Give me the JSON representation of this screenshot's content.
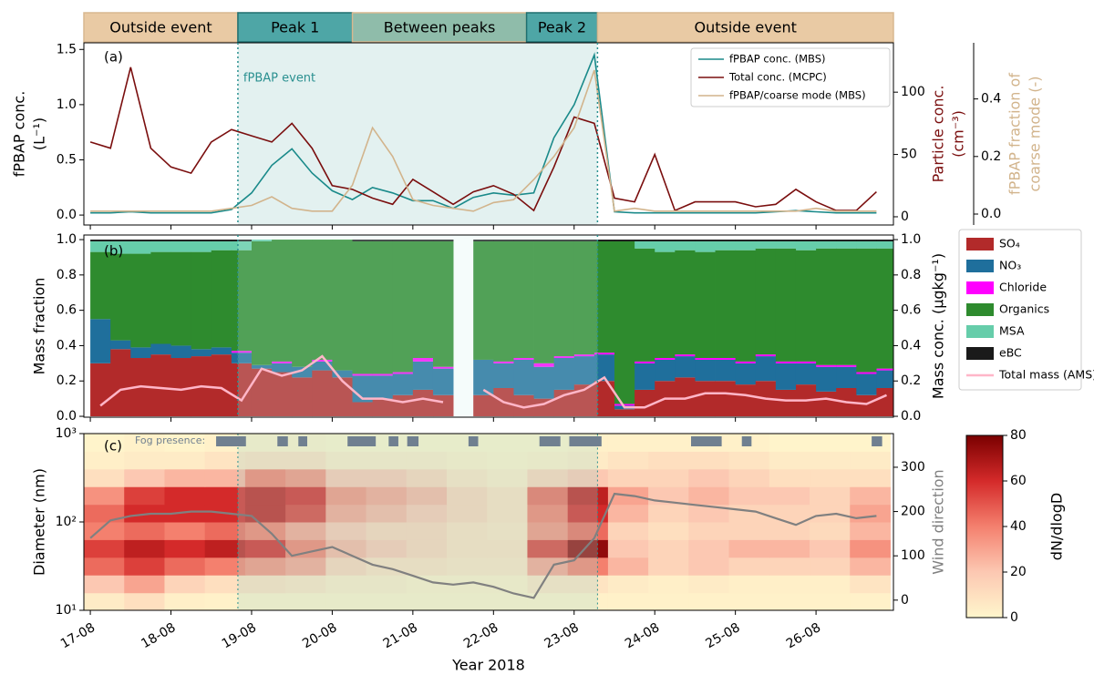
{
  "chart_data": [
    {
      "type": "line",
      "panel_label": "(a)",
      "events": [
        {
          "label": "Outside event",
          "start": 16.92,
          "end": 18.83,
          "color": "#e9caa4"
        },
        {
          "label": "Peak 1",
          "start": 18.83,
          "end": 20.25,
          "color": "#4ea6a6"
        },
        {
          "label": "Between peaks",
          "start": 20.25,
          "end": 22.41,
          "color": "#8fbcaa"
        },
        {
          "label": "Peak 2",
          "start": 22.41,
          "end": 23.29,
          "color": "#4ea6a6"
        },
        {
          "label": "Outside event",
          "start": 23.29,
          "end": 26.96,
          "color": "#e9caa4"
        }
      ],
      "event_span": [
        18.83,
        23.29
      ],
      "event_annotation": "fPBAP event",
      "event_color": "#2a9090",
      "xlim": [
        16.92,
        26.96
      ],
      "x": [
        17,
        17.25,
        17.5,
        17.75,
        18,
        18.25,
        18.5,
        18.75,
        19,
        19.25,
        19.5,
        19.75,
        20,
        20.25,
        20.5,
        20.75,
        21,
        21.25,
        21.5,
        21.75,
        22,
        22.25,
        22.5,
        22.75,
        23,
        23.25,
        23.5,
        23.75,
        24,
        24.25,
        24.5,
        24.75,
        25,
        25.25,
        25.5,
        25.75,
        26,
        26.25,
        26.5,
        26.75
      ],
      "ylim": [
        -0.09,
        1.56
      ],
      "yticks": [
        {
          "value": 0,
          "label": "0.0"
        },
        0.5,
        {
          "value": 1,
          "label": "1.0"
        },
        1.5
      ],
      "y2lim": [
        -6.6,
        139.6
      ],
      "y2ticks": [
        0,
        50,
        100
      ],
      "y3lim": [
        -0.038,
        0.595
      ],
      "y3ticks": [
        {
          "value": 0,
          "label": "0.0"
        },
        0.2,
        0.4
      ],
      "ylabel": [
        "fPBAP conc.",
        "(L⁻¹)"
      ],
      "y2label": [
        "Particle conc.",
        "(cm⁻³)"
      ],
      "y3label": [
        "fPBAP fraction of",
        "coarse mode (-)"
      ],
      "legend": "upper right",
      "series": [
        {
          "name": "fPBAP conc. (MBS)",
          "color": "#1a8a8a",
          "axis": "y",
          "values": [
            0.02,
            0.02,
            0.03,
            0.02,
            0.02,
            0.02,
            0.02,
            0.05,
            0.2,
            0.45,
            0.6,
            0.38,
            0.22,
            0.14,
            0.25,
            0.2,
            0.13,
            0.13,
            0.06,
            0.16,
            0.2,
            0.18,
            0.2,
            0.7,
            1.0,
            1.45,
            0.03,
            0.02,
            0.02,
            0.02,
            0.02,
            0.02,
            0.02,
            0.02,
            0.03,
            0.04,
            0.03,
            0.02,
            0.02,
            0.02
          ]
        },
        {
          "name": "Total conc. (MCPC)",
          "color": "#7a0e0e",
          "axis": "y2",
          "values": [
            60,
            55,
            120,
            55,
            40,
            35,
            60,
            70,
            65,
            60,
            75,
            55,
            25,
            22,
            15,
            10,
            30,
            20,
            10,
            20,
            25,
            18,
            5,
            40,
            80,
            75,
            15,
            12,
            50,
            5,
            12,
            12,
            12,
            8,
            10,
            22,
            12,
            5,
            5,
            20
          ]
        },
        {
          "name": "fPBAP/coarse mode (MBS)",
          "color": "#d2b48c",
          "axis": "y3",
          "values": [
            0.01,
            0.01,
            0.01,
            0.01,
            0.01,
            0.01,
            0.01,
            0.02,
            0.03,
            0.06,
            0.02,
            0.01,
            0.01,
            0.1,
            0.3,
            0.2,
            0.05,
            0.03,
            0.02,
            0.01,
            0.04,
            0.05,
            0.12,
            0.2,
            0.3,
            0.5,
            0.01,
            0.02,
            0.01,
            0.01,
            0.01,
            0.01,
            0.01,
            0.01,
            0.01,
            0.01,
            0.02,
            0.01,
            0.01,
            0.01
          ]
        }
      ]
    },
    {
      "type": "stacked_bar",
      "panel_label": "(b)",
      "xlim": [
        16.92,
        26.96
      ],
      "bar_width": 0.25,
      "x": [
        17,
        17.25,
        17.5,
        17.75,
        18,
        18.25,
        18.5,
        18.75,
        19,
        19.25,
        19.5,
        19.75,
        20,
        20.25,
        20.5,
        20.75,
        21,
        21.25,
        21.5,
        21.75,
        22,
        22.25,
        22.5,
        22.75,
        23,
        23.25,
        23.5,
        23.75,
        24,
        24.25,
        24.5,
        24.75,
        25,
        25.25,
        25.5,
        25.75,
        26,
        26.25,
        26.5,
        26.75
      ],
      "ylim": [
        -0.005,
        1.026
      ],
      "yticks": [
        {
          "value": 0,
          "label": "0.0"
        },
        0.2,
        0.4,
        0.6,
        0.8,
        {
          "value": 1,
          "label": "1.0"
        }
      ],
      "y2lim": [
        -0.005,
        1.026
      ],
      "y2ticks": [
        {
          "value": 0,
          "label": "0.0"
        },
        0.2,
        0.4,
        0.6,
        0.8,
        {
          "value": 1,
          "label": "1.0"
        }
      ],
      "ylabel": "Mass fraction",
      "y2label": "Mass conc. (μgkg⁻¹)",
      "legend": "outside right",
      "series": [
        {
          "name": "SO₄",
          "color": "#b22a2a",
          "values": [
            0.3,
            0.38,
            0.33,
            0.35,
            0.33,
            0.34,
            0.35,
            0.3,
            0.27,
            0.25,
            0.22,
            0.26,
            0.22,
            0.08,
            0.1,
            0.12,
            0.15,
            0.12,
            null,
            0.12,
            0.16,
            0.12,
            0.1,
            0.15,
            0.18,
            0.2,
            0.04,
            0.15,
            0.2,
            0.22,
            0.2,
            0.2,
            0.18,
            0.2,
            0.15,
            0.18,
            0.14,
            0.16,
            0.12,
            0.16
          ]
        },
        {
          "name": "NO₃",
          "color": "#1f6f9c",
          "values": [
            0.25,
            0.05,
            0.06,
            0.06,
            0.07,
            0.04,
            0.04,
            0.06,
            0.02,
            0.05,
            0.06,
            0.05,
            0.04,
            0.15,
            0.13,
            0.12,
            0.16,
            0.15,
            null,
            0.2,
            0.14,
            0.2,
            0.18,
            0.18,
            0.16,
            0.15,
            0.02,
            0.15,
            0.12,
            0.12,
            0.12,
            0.12,
            0.12,
            0.14,
            0.15,
            0.12,
            0.14,
            0.12,
            0.12,
            0.1
          ]
        },
        {
          "name": "Chloride",
          "color": "#ff00ff",
          "values": [
            0,
            0,
            0,
            0,
            0,
            0,
            0,
            0.01,
            0,
            0.01,
            0,
            0.01,
            0,
            0.01,
            0.01,
            0.01,
            0.02,
            0.01,
            null,
            0,
            0.01,
            0.01,
            0.02,
            0.01,
            0.01,
            0.01,
            0.01,
            0.01,
            0.01,
            0.01,
            0.01,
            0.01,
            0.01,
            0.01,
            0.01,
            0.01,
            0.01,
            0.01,
            0.01,
            0.01
          ]
        },
        {
          "name": "Organics",
          "color": "#2e8b2e",
          "values": [
            0.38,
            0.49,
            0.53,
            0.52,
            0.53,
            0.55,
            0.55,
            0.57,
            0.7,
            0.69,
            0.72,
            0.68,
            0.74,
            0.75,
            0.75,
            0.74,
            0.66,
            0.71,
            null,
            0.67,
            0.68,
            0.66,
            0.69,
            0.65,
            0.64,
            0.63,
            0.92,
            0.64,
            0.6,
            0.59,
            0.6,
            0.61,
            0.63,
            0.6,
            0.64,
            0.63,
            0.66,
            0.66,
            0.7,
            0.68
          ]
        },
        {
          "name": "MSA",
          "color": "#66cdaa",
          "values": [
            0.06,
            0.07,
            0.07,
            0.06,
            0.06,
            0.06,
            0.05,
            0.05,
            0.01,
            0,
            0,
            0,
            0,
            0,
            0,
            0,
            0,
            0,
            null,
            0,
            0,
            0,
            0,
            0,
            0,
            0,
            0,
            0.04,
            0.06,
            0.05,
            0.06,
            0.05,
            0.05,
            0.04,
            0.04,
            0.05,
            0.04,
            0.04,
            0.04,
            0.04
          ]
        },
        {
          "name": "eBC",
          "color": "#1a1a1a",
          "values": [
            0.01,
            0.01,
            0.01,
            0.01,
            0.01,
            0.01,
            0.01,
            0.01,
            0,
            0,
            0,
            0,
            0,
            0.01,
            0.01,
            0.01,
            0.01,
            0.01,
            null,
            0.01,
            0.01,
            0.01,
            0.01,
            0.01,
            0.01,
            0.01,
            0.01,
            0.01,
            0.01,
            0.01,
            0.01,
            0.01,
            0.01,
            0.01,
            0.01,
            0.01,
            0.01,
            0.01,
            0.01,
            0.01
          ]
        },
        {
          "name": "Total mass (AMS)",
          "color": "#ffb6c8",
          "axis": "y2",
          "line": true,
          "values": [
            0.06,
            0.15,
            0.17,
            0.16,
            0.15,
            0.17,
            0.16,
            0.09,
            0.27,
            0.23,
            0.26,
            0.34,
            0.2,
            0.1,
            0.1,
            0.08,
            0.1,
            0.08,
            null,
            0.15,
            0.08,
            0.05,
            0.07,
            0.12,
            0.15,
            0.22,
            0.05,
            0.05,
            0.1,
            0.1,
            0.13,
            0.13,
            0.12,
            0.1,
            0.09,
            0.09,
            0.1,
            0.08,
            0.07,
            0.12
          ]
        }
      ]
    },
    {
      "type": "heatmap",
      "panel_label": "(c)",
      "xlim": [
        16.92,
        26.96
      ],
      "xticks": [
        {
          "value": 17,
          "label": "17-08"
        },
        {
          "value": 18,
          "label": "18-08"
        },
        {
          "value": 19,
          "label": "19-08"
        },
        {
          "value": 20,
          "label": "20-08"
        },
        {
          "value": 21,
          "label": "21-08"
        },
        {
          "value": 22,
          "label": "22-08"
        },
        {
          "value": 23,
          "label": "23-08"
        },
        {
          "value": 24,
          "label": "24-08"
        },
        {
          "value": 25,
          "label": "25-08"
        },
        {
          "value": 26,
          "label": "26-08"
        }
      ],
      "xlabel": "Year 2018",
      "ylim": [
        10,
        1000
      ],
      "ylog": true,
      "yticks": [
        {
          "value": 10,
          "label": "10¹"
        },
        {
          "value": 100,
          "label": "10²"
        },
        {
          "value": 1000,
          "label": "10³"
        }
      ],
      "ylabel": "Diameter (nm)",
      "xbins": [
        16.92,
        17.42,
        17.92,
        18.42,
        18.92,
        19.42,
        19.92,
        20.42,
        20.92,
        21.42,
        21.92,
        22.42,
        22.92,
        23.42,
        23.92,
        24.42,
        24.92,
        25.42,
        25.92,
        26.42,
        26.92
      ],
      "ybins": [
        10,
        15.8,
        25.1,
        39.8,
        63.1,
        100,
        158,
        251,
        398,
        631,
        1000
      ],
      "z": [
        [
          5,
          10,
          3,
          2,
          2,
          2,
          2,
          2,
          2,
          2,
          2,
          2,
          2,
          2,
          2,
          2,
          2,
          2,
          2,
          2
        ],
        [
          20,
          30,
          15,
          10,
          10,
          8,
          5,
          5,
          3,
          3,
          3,
          8,
          8,
          5,
          3,
          5,
          3,
          3,
          3,
          8
        ],
        [
          45,
          55,
          45,
          40,
          35,
          30,
          15,
          10,
          10,
          8,
          8,
          30,
          40,
          25,
          15,
          20,
          15,
          15,
          15,
          25
        ],
        [
          55,
          65,
          60,
          65,
          60,
          40,
          25,
          20,
          15,
          10,
          10,
          55,
          75,
          20,
          15,
          20,
          25,
          25,
          20,
          35
        ],
        [
          40,
          45,
          40,
          45,
          40,
          30,
          20,
          15,
          15,
          10,
          8,
          35,
          45,
          15,
          10,
          15,
          15,
          15,
          12,
          25
        ],
        [
          45,
          60,
          60,
          60,
          65,
          55,
          30,
          25,
          20,
          15,
          10,
          40,
          60,
          25,
          15,
          20,
          15,
          15,
          15,
          30
        ],
        [
          35,
          55,
          60,
          60,
          65,
          60,
          35,
          30,
          25,
          15,
          10,
          45,
          65,
          30,
          20,
          25,
          20,
          20,
          15,
          25
        ],
        [
          10,
          20,
          25,
          25,
          40,
          35,
          20,
          20,
          15,
          8,
          5,
          15,
          20,
          15,
          15,
          20,
          15,
          10,
          10,
          10
        ],
        [
          3,
          5,
          5,
          8,
          10,
          10,
          5,
          5,
          5,
          3,
          2,
          3,
          5,
          8,
          10,
          10,
          8,
          5,
          5,
          5
        ],
        [
          1,
          2,
          1,
          2,
          2,
          2,
          1,
          1,
          1,
          1,
          1,
          1,
          2,
          2,
          2,
          2,
          2,
          1,
          1,
          1
        ]
      ],
      "clim": [
        0,
        80
      ],
      "cticks": [
        0,
        20,
        40,
        60,
        80
      ],
      "clabel": "dN/dlogD",
      "colormap": [
        "#fff6cc",
        "#fcc8b2",
        "#f4806e",
        "#d42a2a",
        "#7a0000"
      ],
      "y2lim": [
        -23,
        376
      ],
      "y2ticks": [
        0,
        100,
        200,
        300
      ],
      "y2label": "Wind direction",
      "wind": {
        "color": "#808080",
        "x": [
          17,
          17.25,
          17.5,
          17.75,
          18,
          18.25,
          18.5,
          18.75,
          19,
          19.25,
          19.5,
          19.75,
          20,
          20.25,
          20.5,
          20.75,
          21,
          21.25,
          21.5,
          21.75,
          22,
          22.25,
          22.5,
          22.75,
          23,
          23.25,
          23.5,
          23.75,
          24,
          24.25,
          24.5,
          24.75,
          25,
          25.25,
          25.5,
          25.75,
          26,
          26.25,
          26.5,
          26.75
        ],
        "values": [
          140,
          180,
          190,
          195,
          195,
          200,
          200,
          195,
          190,
          150,
          100,
          110,
          120,
          100,
          80,
          70,
          55,
          40,
          35,
          40,
          30,
          15,
          5,
          80,
          90,
          140,
          240,
          235,
          225,
          220,
          215,
          210,
          205,
          200,
          185,
          170,
          190,
          195,
          185,
          190
        ]
      },
      "fog_label": "Fog presence:",
      "fog_color": "#708090",
      "fog": [
        [
          18.56,
          18.93
        ],
        [
          19.32,
          19.45
        ],
        [
          19.58,
          19.69
        ],
        [
          20.19,
          20.54
        ],
        [
          20.7,
          20.82
        ],
        [
          20.93,
          21.07
        ],
        [
          21.69,
          21.81
        ],
        [
          22.57,
          22.83
        ],
        [
          22.94,
          23.34
        ],
        [
          24.45,
          24.83
        ],
        [
          25.08,
          25.2
        ],
        [
          26.69,
          26.82
        ]
      ]
    }
  ]
}
